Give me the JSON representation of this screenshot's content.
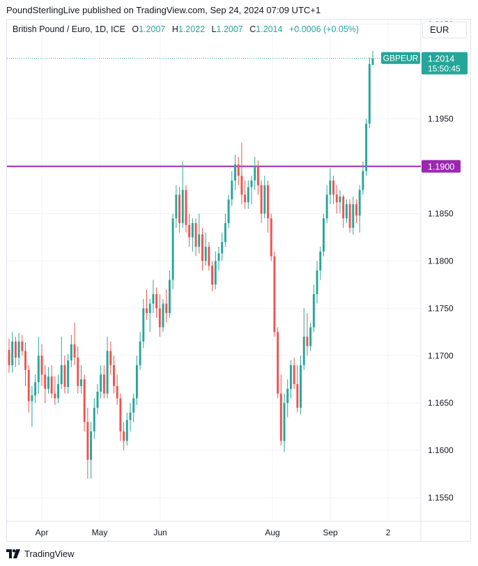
{
  "header": {
    "publisher_line": "PoundSterlingLive published on TradingView.com, Sep 24, 2024 07:09 UTC+1"
  },
  "legend": {
    "symbol": "British Pound / Euro, 1D, ICE",
    "open_label": "O",
    "open": "1.2007",
    "high_label": "H",
    "high": "1.2022",
    "low_label": "L",
    "low": "1.2007",
    "close_label": "C",
    "close": "1.2014",
    "change": "+0.0006 (+0.05%)"
  },
  "currency": "EUR",
  "footer": {
    "brand": "TradingView"
  },
  "colors": {
    "up": "#26a69a",
    "down": "#ef5350",
    "level_line": "#9c27b0",
    "grid": "#f0f3fa"
  },
  "chart_data": {
    "type": "candlestick",
    "y_ticks": [
      "1.2050",
      "1.1950",
      "1.1850",
      "1.1800",
      "1.1750",
      "1.1700",
      "1.1650",
      "1.1600",
      "1.1550"
    ],
    "x_ticks": [
      "Apr",
      "May",
      "Jun",
      "Aug",
      "Sep",
      "2"
    ],
    "ylim": [
      1.1525,
      1.2055
    ],
    "grid": true,
    "horizontal_line": {
      "value": 1.19,
      "label": "1.1900"
    },
    "last_price": {
      "symbol": "GBPEUR",
      "value": "1.2014",
      "countdown": "15:50:45"
    },
    "candles": [
      [
        1.1706,
        1.1718,
        1.1682,
        1.169
      ],
      [
        1.169,
        1.1725,
        1.1682,
        1.1715
      ],
      [
        1.1715,
        1.172,
        1.1688,
        1.1698
      ],
      [
        1.1698,
        1.1724,
        1.169,
        1.1715
      ],
      [
        1.1715,
        1.1722,
        1.17,
        1.1705
      ],
      [
        1.1705,
        1.1714,
        1.1668,
        1.1685
      ],
      [
        1.1685,
        1.169,
        1.164,
        1.1652
      ],
      [
        1.1652,
        1.1668,
        1.1625,
        1.1658
      ],
      [
        1.1658,
        1.168,
        1.165,
        1.1672
      ],
      [
        1.1672,
        1.172,
        1.166,
        1.17
      ],
      [
        1.17,
        1.1712,
        1.1668,
        1.168
      ],
      [
        1.168,
        1.169,
        1.165,
        1.1665
      ],
      [
        1.1665,
        1.1688,
        1.166,
        1.1678
      ],
      [
        1.1678,
        1.169,
        1.1655,
        1.166
      ],
      [
        1.166,
        1.1678,
        1.1648,
        1.1655
      ],
      [
        1.1655,
        1.168,
        1.165,
        1.167
      ],
      [
        1.167,
        1.172,
        1.1665,
        1.169
      ],
      [
        1.169,
        1.17,
        1.166,
        1.1667
      ],
      [
        1.1667,
        1.1702,
        1.166,
        1.1695
      ],
      [
        1.1695,
        1.1722,
        1.1688,
        1.1712
      ],
      [
        1.1712,
        1.1735,
        1.169,
        1.1698
      ],
      [
        1.1698,
        1.171,
        1.166,
        1.1668
      ],
      [
        1.1668,
        1.169,
        1.166,
        1.1675
      ],
      [
        1.1675,
        1.168,
        1.162,
        1.163
      ],
      [
        1.163,
        1.1645,
        1.157,
        1.159
      ],
      [
        1.159,
        1.163,
        1.157,
        1.162
      ],
      [
        1.162,
        1.1655,
        1.1612,
        1.1645
      ],
      [
        1.1645,
        1.167,
        1.1638,
        1.1662
      ],
      [
        1.1662,
        1.169,
        1.1655,
        1.168
      ],
      [
        1.168,
        1.169,
        1.1655,
        1.166
      ],
      [
        1.166,
        1.172,
        1.1655,
        1.1705
      ],
      [
        1.1705,
        1.1715,
        1.168,
        1.169
      ],
      [
        1.169,
        1.17,
        1.166,
        1.1668
      ],
      [
        1.1668,
        1.168,
        1.1648,
        1.1655
      ],
      [
        1.1655,
        1.166,
        1.161,
        1.162
      ],
      [
        1.162,
        1.163,
        1.16,
        1.161
      ],
      [
        1.161,
        1.164,
        1.1605,
        1.1632
      ],
      [
        1.1632,
        1.165,
        1.162,
        1.164
      ],
      [
        1.164,
        1.166,
        1.163,
        1.1655
      ],
      [
        1.1655,
        1.17,
        1.1648,
        1.169
      ],
      [
        1.169,
        1.1725,
        1.1685,
        1.1715
      ],
      [
        1.1715,
        1.176,
        1.1708,
        1.175
      ],
      [
        1.175,
        1.177,
        1.1738,
        1.1745
      ],
      [
        1.1745,
        1.176,
        1.1725,
        1.1755
      ],
      [
        1.1755,
        1.178,
        1.1745,
        1.1765
      ],
      [
        1.1765,
        1.1772,
        1.174,
        1.175
      ],
      [
        1.175,
        1.1765,
        1.172,
        1.173
      ],
      [
        1.173,
        1.176,
        1.1725,
        1.1755
      ],
      [
        1.1755,
        1.177,
        1.1735,
        1.1745
      ],
      [
        1.1745,
        1.179,
        1.174,
        1.178
      ],
      [
        1.178,
        1.185,
        1.177,
        1.1845
      ],
      [
        1.1845,
        1.188,
        1.1835,
        1.187
      ],
      [
        1.187,
        1.1878,
        1.183,
        1.184
      ],
      [
        1.184,
        1.1905,
        1.1835,
        1.1875
      ],
      [
        1.1875,
        1.188,
        1.183,
        1.1838
      ],
      [
        1.1838,
        1.185,
        1.1815,
        1.1825
      ],
      [
        1.1825,
        1.1845,
        1.181,
        1.184
      ],
      [
        1.184,
        1.1845,
        1.1805,
        1.1815
      ],
      [
        1.1815,
        1.185,
        1.1808,
        1.1828
      ],
      [
        1.1828,
        1.1835,
        1.179,
        1.18
      ],
      [
        1.18,
        1.183,
        1.1795,
        1.1815
      ],
      [
        1.1815,
        1.182,
        1.179,
        1.1795
      ],
      [
        1.1795,
        1.18,
        1.1768,
        1.1775
      ],
      [
        1.1775,
        1.181,
        1.177,
        1.18
      ],
      [
        1.18,
        1.1815,
        1.179,
        1.1808
      ],
      [
        1.1808,
        1.183,
        1.18,
        1.182
      ],
      [
        1.182,
        1.185,
        1.1815,
        1.184
      ],
      [
        1.184,
        1.187,
        1.1835,
        1.1865
      ],
      [
        1.1865,
        1.1895,
        1.1858,
        1.1885
      ],
      [
        1.1885,
        1.1912,
        1.1875,
        1.1902
      ],
      [
        1.1902,
        1.191,
        1.188,
        1.189
      ],
      [
        1.189,
        1.1925,
        1.186,
        1.187
      ],
      [
        1.187,
        1.1885,
        1.1855,
        1.1862
      ],
      [
        1.1862,
        1.1885,
        1.1855,
        1.1878
      ],
      [
        1.1878,
        1.189,
        1.186,
        1.1885
      ],
      [
        1.1885,
        1.191,
        1.1875,
        1.19
      ],
      [
        1.19,
        1.1906,
        1.187,
        1.188
      ],
      [
        1.188,
        1.1885,
        1.184,
        1.185
      ],
      [
        1.185,
        1.189,
        1.1845,
        1.188
      ],
      [
        1.188,
        1.1885,
        1.183,
        1.1845
      ],
      [
        1.1845,
        1.185,
        1.18,
        1.1805
      ],
      [
        1.1805,
        1.181,
        1.172,
        1.1725
      ],
      [
        1.1725,
        1.173,
        1.1655,
        1.166
      ],
      [
        1.166,
        1.168,
        1.1605,
        1.161
      ],
      [
        1.161,
        1.166,
        1.1598,
        1.165
      ],
      [
        1.165,
        1.1675,
        1.1635,
        1.1665
      ],
      [
        1.1665,
        1.1695,
        1.1655,
        1.169
      ],
      [
        1.169,
        1.1698,
        1.1665,
        1.167
      ],
      [
        1.167,
        1.169,
        1.164,
        1.1645
      ],
      [
        1.1645,
        1.17,
        1.1638,
        1.169
      ],
      [
        1.169,
        1.175,
        1.1685,
        1.172
      ],
      [
        1.172,
        1.1745,
        1.17,
        1.171
      ],
      [
        1.171,
        1.1735,
        1.1705,
        1.173
      ],
      [
        1.173,
        1.1775,
        1.1725,
        1.1765
      ],
      [
        1.1765,
        1.18,
        1.1755,
        1.179
      ],
      [
        1.179,
        1.1815,
        1.178,
        1.181
      ],
      [
        1.181,
        1.185,
        1.1805,
        1.1845
      ],
      [
        1.1845,
        1.188,
        1.184,
        1.187
      ],
      [
        1.187,
        1.1898,
        1.186,
        1.1885
      ],
      [
        1.1885,
        1.189,
        1.186,
        1.187
      ],
      [
        1.187,
        1.188,
        1.185,
        1.1862
      ],
      [
        1.1862,
        1.1875,
        1.185,
        1.1868
      ],
      [
        1.1868,
        1.187,
        1.1835,
        1.1845
      ],
      [
        1.1845,
        1.1865,
        1.184,
        1.186
      ],
      [
        1.186,
        1.1865,
        1.183,
        1.1835
      ],
      [
        1.1835,
        1.1868,
        1.1828,
        1.186
      ],
      [
        1.186,
        1.1865,
        1.184,
        1.1848
      ],
      [
        1.1848,
        1.188,
        1.183,
        1.1875
      ],
      [
        1.1875,
        1.1905,
        1.187,
        1.1895
      ],
      [
        1.1895,
        1.195,
        1.189,
        1.1945
      ],
      [
        1.1945,
        1.2015,
        1.194,
        1.2008
      ],
      [
        1.2007,
        1.2022,
        1.2007,
        1.2014
      ]
    ]
  }
}
